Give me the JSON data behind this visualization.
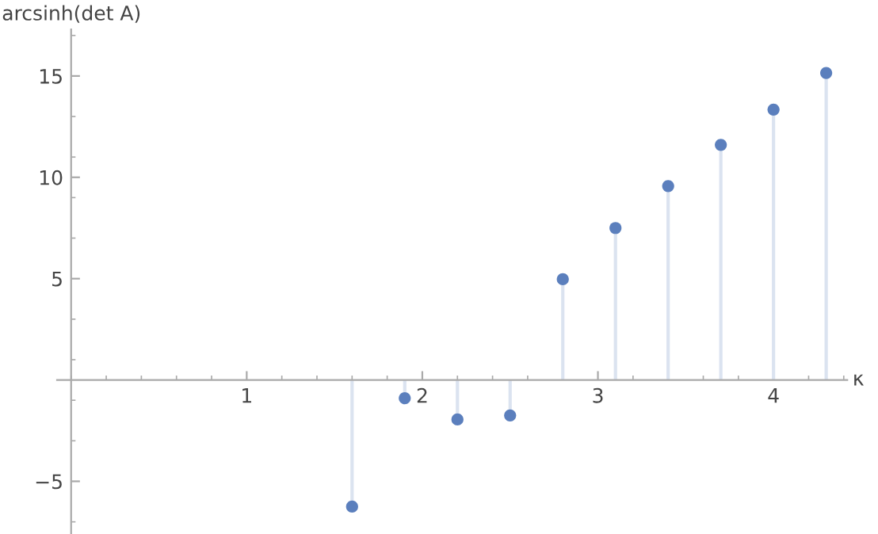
{
  "chart_data": {
    "type": "lollipop",
    "xlabel": "κ",
    "ylabel": "arcsinh(det A)",
    "x": [
      1.6,
      1.9,
      2.2,
      2.5,
      2.8,
      3.1,
      3.4,
      3.7,
      4.0,
      4.3
    ],
    "series": [
      {
        "color": "#5b7fbd",
        "values": [
          -6.25,
          -0.9,
          -1.95,
          -1.75,
          4.97,
          7.5,
          9.57,
          11.6,
          13.34,
          15.15
        ]
      }
    ],
    "xlim": [
      -0.08,
      4.42
    ],
    "ylim": [
      -7.6,
      17.3
    ],
    "xticks": [
      1,
      2,
      3,
      4
    ],
    "yticks": [
      {
        "value": -5,
        "label": "−5"
      },
      5,
      10,
      15
    ],
    "marker": "circle",
    "grid": false
  }
}
